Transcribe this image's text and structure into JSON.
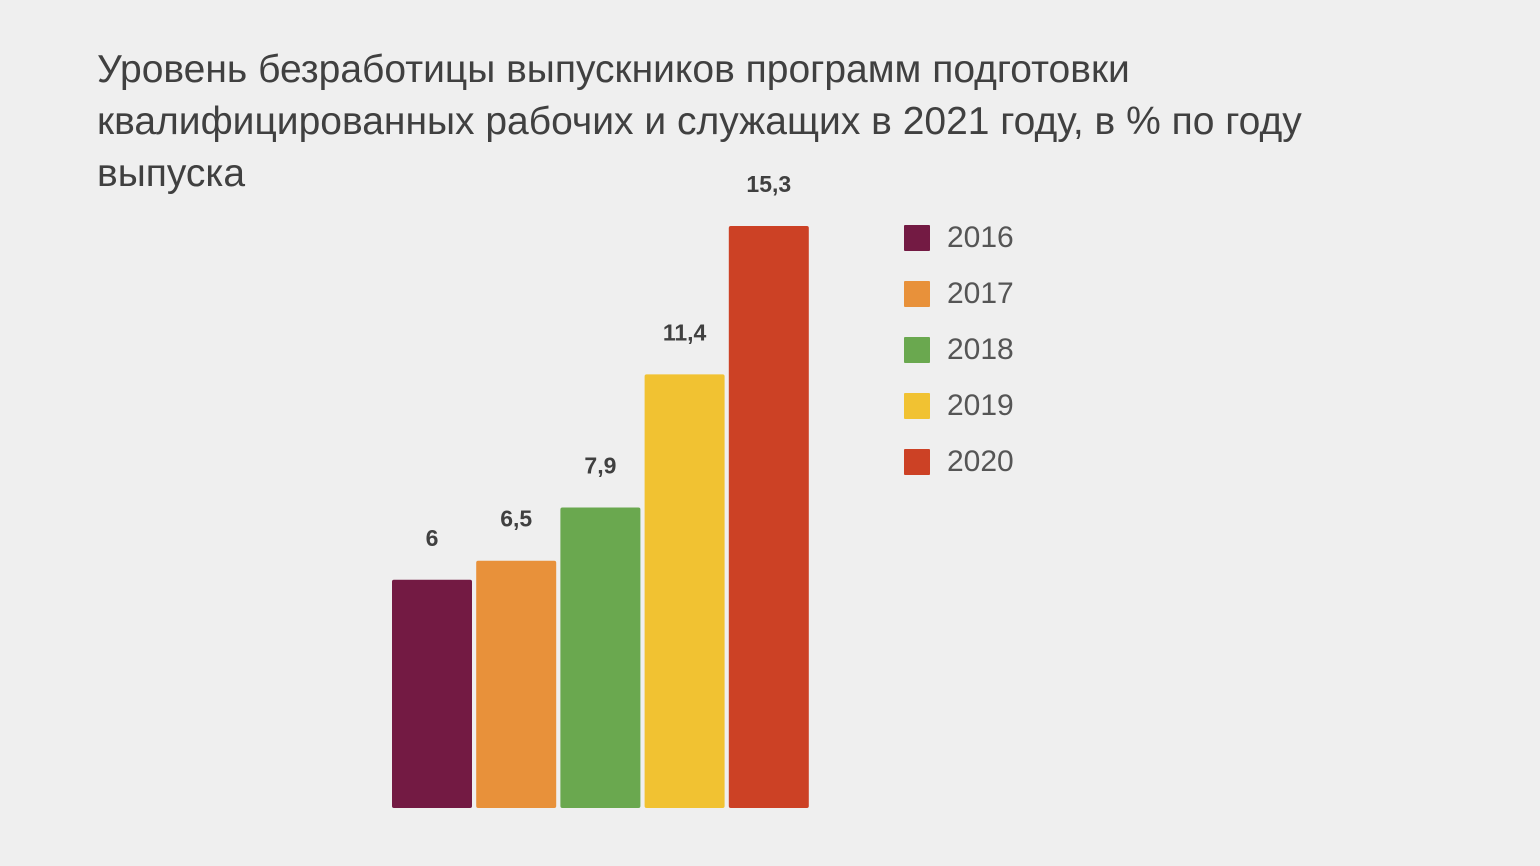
{
  "title": "Уровень безработицы выпускников программ подготовки квалифицированных рабочих и служащих в 2021 году, в % по году выпуска",
  "chart_data": {
    "type": "bar",
    "title": "Уровень безработицы выпускников программ подготовки квалифицированных рабочих и служащих в 2021 году, в % по году выпуска",
    "categories": [
      "2016",
      "2017",
      "2018",
      "2019",
      "2020"
    ],
    "values": [
      6,
      6.5,
      7.9,
      11.4,
      15.3
    ],
    "labels": [
      "6",
      "6,5",
      "7,9",
      "11,4",
      "15,3"
    ],
    "colors": [
      "#731a43",
      "#e8913a",
      "#6aa84f",
      "#f1c232",
      "#cc4125"
    ],
    "legend": "right",
    "grid": false,
    "ylim": [
      0,
      15.3
    ]
  },
  "legend": {
    "items": [
      {
        "label": "2016",
        "color": "#731a43"
      },
      {
        "label": "2017",
        "color": "#e8913a"
      },
      {
        "label": "2018",
        "color": "#6aa84f"
      },
      {
        "label": "2019",
        "color": "#f1c232"
      },
      {
        "label": "2020",
        "color": "#cc4125"
      }
    ]
  }
}
